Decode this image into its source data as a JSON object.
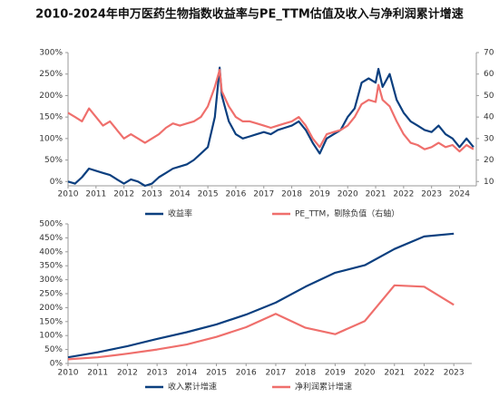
{
  "chart_data": [
    {
      "type": "line",
      "title": "2010-2024年申万医药生物指数收益率与PE_TTM估值及收入与净利润累计增速",
      "x": [
        2010,
        2010.25,
        2010.5,
        2010.75,
        2011,
        2011.25,
        2011.5,
        2011.75,
        2012,
        2012.25,
        2012.5,
        2012.75,
        2013,
        2013.25,
        2013.5,
        2013.75,
        2014,
        2014.25,
        2014.5,
        2014.75,
        2015,
        2015.25,
        2015.42,
        2015.5,
        2015.75,
        2016,
        2016.25,
        2016.5,
        2016.75,
        2017,
        2017.25,
        2017.5,
        2017.75,
        2018,
        2018.25,
        2018.5,
        2018.75,
        2019,
        2019.25,
        2019.5,
        2019.75,
        2020,
        2020.25,
        2020.5,
        2020.75,
        2021,
        2021.1,
        2021.25,
        2021.5,
        2021.75,
        2022,
        2022.25,
        2022.5,
        2022.75,
        2023,
        2023.25,
        2023.5,
        2023.75,
        2024,
        2024.25,
        2024.5
      ],
      "series": [
        {
          "name": "收益率",
          "color": "#0b3f7f",
          "values": [
            0,
            -5,
            10,
            30,
            25,
            20,
            15,
            5,
            -5,
            5,
            0,
            -10,
            -5,
            10,
            20,
            30,
            35,
            40,
            50,
            65,
            80,
            150,
            265,
            200,
            140,
            110,
            100,
            105,
            110,
            115,
            110,
            120,
            125,
            130,
            140,
            120,
            90,
            65,
            100,
            110,
            120,
            150,
            170,
            230,
            240,
            230,
            262,
            220,
            250,
            190,
            160,
            140,
            130,
            120,
            115,
            130,
            110,
            100,
            80,
            100,
            80
          ]
        },
        {
          "name": "PE_TTM，剔除负值（右轴）",
          "color": "#ef6f6c",
          "axis": "y2",
          "values": [
            42,
            40,
            38,
            44,
            40,
            36,
            38,
            34,
            30,
            32,
            30,
            28,
            30,
            32,
            35,
            37,
            36,
            37,
            38,
            40,
            45,
            54,
            62,
            52,
            45,
            40,
            38,
            38,
            37,
            36,
            35,
            36,
            37,
            38,
            40,
            36,
            30,
            26,
            32,
            33,
            34,
            36,
            40,
            46,
            48,
            47,
            55,
            48,
            45,
            38,
            32,
            28,
            27,
            25,
            26,
            28,
            26,
            27,
            24,
            27,
            25
          ]
        }
      ],
      "xlim": [
        2010,
        2024.6
      ],
      "xticks": [
        2010,
        2011,
        2012,
        2013,
        2014,
        2015,
        2016,
        2017,
        2018,
        2019,
        2020,
        2021,
        2022,
        2023,
        2024
      ],
      "ylim": [
        -10,
        300
      ],
      "yticks": [
        {
          "value": 0,
          "label": "0%"
        },
        {
          "value": 50,
          "label": "50%"
        },
        {
          "value": 100,
          "label": "100%"
        },
        {
          "value": 150,
          "label": "150%"
        },
        {
          "value": 200,
          "label": "200%"
        },
        {
          "value": 250,
          "label": "250%"
        },
        {
          "value": 300,
          "label": "300%"
        }
      ],
      "y2lim": [
        8,
        70
      ],
      "y2ticks": [
        10,
        20,
        30,
        40,
        50,
        60,
        70
      ]
    },
    {
      "type": "line",
      "categories": [
        "2010",
        "2011",
        "2012",
        "2013",
        "2014",
        "2015",
        "2016",
        "2017",
        "2018",
        "2019",
        "2020",
        "2021",
        "2022",
        "2023"
      ],
      "series": [
        {
          "name": "收入累计增速",
          "color": "#0b3f7f",
          "values": [
            22,
            40,
            62,
            88,
            112,
            140,
            175,
            218,
            275,
            325,
            352,
            410,
            455,
            465
          ]
        },
        {
          "name": "净利润累计增速",
          "color": "#ef6f6c",
          "values": [
            15,
            22,
            35,
            50,
            68,
            95,
            130,
            178,
            128,
            105,
            152,
            280,
            275,
            210
          ]
        }
      ],
      "ylim": [
        0,
        500
      ],
      "yticks": [
        {
          "value": 0,
          "label": "0%"
        },
        {
          "value": 50,
          "label": "50%"
        },
        {
          "value": 100,
          "label": "100%"
        },
        {
          "value": 150,
          "label": "150%"
        },
        {
          "value": 200,
          "label": "200%"
        },
        {
          "value": 250,
          "label": "250%"
        },
        {
          "value": 300,
          "label": "300%"
        },
        {
          "value": 350,
          "label": "350%"
        },
        {
          "value": 400,
          "label": "400%"
        },
        {
          "value": 450,
          "label": "450%"
        },
        {
          "value": 500,
          "label": "500%"
        }
      ]
    }
  ]
}
